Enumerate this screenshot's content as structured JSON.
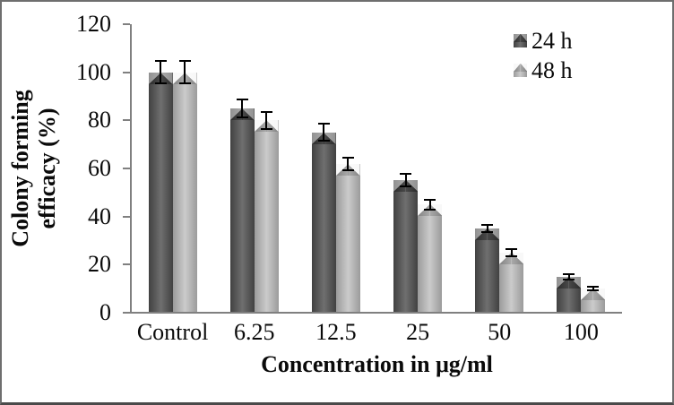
{
  "chart_data": {
    "type": "bar",
    "title": "",
    "xlabel": "Concentration in μg/ml",
    "ylabel": "Colony forming efficacy (%)",
    "ylabel_lines": [
      "Colony forming",
      "efficacy (%)"
    ],
    "categories": [
      "Control",
      "6.25",
      "12.5",
      "25",
      "50",
      "100"
    ],
    "series": [
      {
        "name": "24 h",
        "values": [
          100,
          85,
          75,
          55,
          35,
          15
        ],
        "errors": [
          5,
          4,
          4,
          3,
          2,
          1.5
        ],
        "color_edge": "#414141",
        "color_center": "#6f6f6f"
      },
      {
        "name": "48 h",
        "values": [
          100,
          80,
          62,
          45,
          25,
          10
        ],
        "errors": [
          5,
          4,
          3,
          2.5,
          2,
          1
        ],
        "color_edge": "#9b9b9b",
        "color_center": "#cbcbcb"
      }
    ],
    "ylim": [
      0,
      120
    ],
    "yticks": [
      0,
      20,
      40,
      60,
      80,
      100,
      120
    ],
    "grid": false,
    "legend_position": "top-right",
    "error_bars": true
  },
  "style": {
    "axis_color": "#808080",
    "error_bar_color": "#000000",
    "background": "#ffffff",
    "border_color": "#6e6e6e",
    "text_color": "#0a0a0a"
  }
}
